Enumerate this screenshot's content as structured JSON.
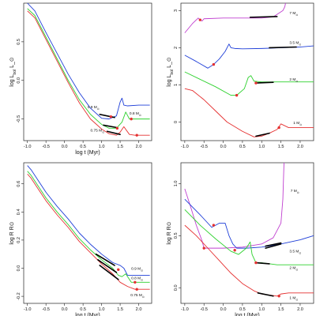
{
  "colors": {
    "blue": "#1f3fd8",
    "green": "#2ed12e",
    "red": "#e53030",
    "magenta": "#c040d0",
    "black": "#000000"
  },
  "chart_data": [
    {
      "type": "line",
      "xlabel": "log t  (Myr)",
      "ylabel": "log L_bol L_⊙",
      "xlim": [
        -1.1,
        2.35
      ],
      "ylim": [
        -0.78,
        1.0
      ],
      "xticks": [
        "-1.0",
        "-0.5",
        "0.0",
        "0.5",
        "1.0",
        "1.5",
        "2.0"
      ],
      "yticks": [
        {
          "v": 0.5,
          "label": "0.5"
        },
        {
          "v": 0.0,
          "label": "0.0"
        },
        {
          "v": -0.5,
          "label": "-0.5"
        }
      ],
      "series": [
        {
          "name": "0.9 M⊙",
          "color": "blue",
          "x": [
            -1.0,
            -0.8,
            -0.5,
            -0.2,
            0.1,
            0.4,
            0.7,
            1.0,
            1.2,
            1.4,
            1.5,
            1.55,
            1.6,
            1.7,
            2.0,
            2.3
          ],
          "y": [
            1.0,
            0.9,
            0.62,
            0.35,
            0.08,
            -0.16,
            -0.36,
            -0.49,
            -0.5,
            -0.46,
            -0.28,
            -0.23,
            -0.32,
            -0.33,
            -0.32,
            -0.32
          ]
        },
        {
          "name": "0.8 M⊙",
          "color": "green",
          "x": [
            -1.0,
            -0.8,
            -0.5,
            -0.2,
            0.1,
            0.4,
            0.7,
            1.0,
            1.2,
            1.4,
            1.55,
            1.65,
            1.75,
            1.9,
            2.3
          ],
          "y": [
            0.93,
            0.84,
            0.56,
            0.28,
            0.0,
            -0.25,
            -0.44,
            -0.57,
            -0.62,
            -0.62,
            -0.54,
            -0.41,
            -0.5,
            -0.5,
            -0.5
          ]
        },
        {
          "name": "0.75 M⊙",
          "color": "red",
          "x": [
            -1.0,
            -0.8,
            -0.5,
            -0.2,
            0.1,
            0.4,
            0.7,
            1.0,
            1.2,
            1.4,
            1.5,
            1.6,
            1.75,
            1.9,
            2.3
          ],
          "y": [
            0.9,
            0.81,
            0.53,
            0.25,
            -0.03,
            -0.29,
            -0.5,
            -0.63,
            -0.69,
            -0.71,
            -0.67,
            -0.6,
            -0.7,
            -0.71,
            -0.71
          ]
        }
      ],
      "segments": [
        {
          "x": [
            0.95,
            1.35
          ],
          "y": [
            -0.44,
            -0.48
          ]
        },
        {
          "x": [
            1.05,
            1.4
          ],
          "y": [
            -0.58,
            -0.61
          ]
        },
        {
          "x": [
            1.15,
            1.5
          ],
          "y": [
            -0.66,
            -0.7
          ]
        }
      ],
      "dots": [
        {
          "x": 1.25,
          "y": -0.47
        },
        {
          "x": 1.8,
          "y": -0.5
        },
        {
          "x": 1.95,
          "y": -0.71
        },
        {
          "x": 1.42,
          "y": -0.62
        }
      ],
      "labels": [
        {
          "text": "0.9 M⊙",
          "x": 0.62,
          "y": -0.36
        },
        {
          "text": "0.8 M⊙",
          "x": 1.75,
          "y": -0.44
        },
        {
          "text": "0.75 M⊙",
          "x": 0.7,
          "y": -0.66
        }
      ]
    },
    {
      "type": "line",
      "xlabel": "",
      "ylabel": "log L_bol L_⊙",
      "xlim": [
        -1.1,
        2.35
      ],
      "ylim": [
        -0.5,
        3.2
      ],
      "xticks": [
        "-1.0",
        "-0.5",
        "0.0",
        "0.5",
        "1.0",
        "1.5",
        "2.0"
      ],
      "yticks": [
        {
          "v": 3,
          "label": "3"
        },
        {
          "v": 2,
          "label": "2"
        },
        {
          "v": 1,
          "label": "1"
        },
        {
          "v": 0,
          "label": "0"
        }
      ],
      "series": [
        {
          "name": "7 M⊙",
          "color": "magenta",
          "x": [
            -1.0,
            -0.8,
            -0.65,
            -0.6,
            -0.55,
            -0.5,
            0.0,
            0.5,
            1.0,
            1.3,
            1.55,
            1.6,
            1.62
          ],
          "y": [
            2.4,
            2.65,
            2.8,
            2.75,
            2.72,
            2.78,
            2.8,
            2.8,
            2.8,
            2.83,
            3.0,
            3.1,
            3.2
          ]
        },
        {
          "name": "3.5 M⊙",
          "color": "blue",
          "x": [
            -1.0,
            -0.7,
            -0.4,
            -0.25,
            -0.1,
            0.05,
            0.15,
            0.2,
            0.3,
            0.5,
            1.0,
            1.5,
            2.0,
            2.35
          ],
          "y": [
            1.8,
            1.63,
            1.45,
            1.55,
            1.7,
            1.9,
            2.1,
            2.0,
            1.98,
            1.97,
            1.98,
            2.0,
            2.02,
            2.05
          ]
        },
        {
          "name": "2 M⊙",
          "color": "green",
          "x": [
            -1.0,
            -0.6,
            -0.2,
            0.2,
            0.35,
            0.55,
            0.65,
            0.72,
            0.8,
            1.0,
            1.3,
            1.6,
            2.0,
            2.35
          ],
          "y": [
            1.35,
            1.15,
            0.95,
            0.72,
            0.72,
            0.9,
            1.2,
            1.25,
            1.1,
            1.08,
            1.08,
            1.08,
            1.08,
            1.08
          ]
        },
        {
          "name": "1 M⊙",
          "color": "red",
          "x": [
            -1.0,
            -0.8,
            -0.5,
            -0.2,
            0.1,
            0.5,
            0.8,
            1.0,
            1.2,
            1.4,
            1.5,
            1.6,
            1.7,
            2.0,
            2.35
          ],
          "y": [
            0.9,
            0.85,
            0.6,
            0.3,
            0.0,
            -0.25,
            -0.4,
            -0.38,
            -0.3,
            -0.2,
            -0.05,
            -0.1,
            -0.15,
            -0.15,
            -0.15
          ]
        }
      ],
      "segments": [
        {
          "x": [
            0.7,
            1.4
          ],
          "y": [
            2.82,
            2.84
          ]
        },
        {
          "x": [
            1.2,
            1.9
          ],
          "y": [
            2.0,
            2.02
          ]
        },
        {
          "x": [
            0.85,
            1.3
          ],
          "y": [
            1.05,
            1.07
          ]
        },
        {
          "x": [
            0.85,
            1.2
          ],
          "y": [
            -0.38,
            -0.3
          ]
        }
      ],
      "dots": [
        {
          "x": -0.6,
          "y": 2.75
        },
        {
          "x": -0.25,
          "y": 1.55
        },
        {
          "x": 0.35,
          "y": 0.72
        },
        {
          "x": 0.85,
          "y": 1.05
        },
        {
          "x": 1.45,
          "y": -0.15
        }
      ],
      "labels": [
        {
          "text": "7 M⊙",
          "x": 1.72,
          "y": 2.9
        },
        {
          "text": "3.5 M⊙",
          "x": 1.72,
          "y": 2.1
        },
        {
          "text": "2 M⊙",
          "x": 1.72,
          "y": 1.12
        },
        {
          "text": "1 M⊙",
          "x": 1.82,
          "y": -0.05
        }
      ]
    },
    {
      "type": "line",
      "xlabel": "log t  (Myr)",
      "ylabel": "log R  R⊙",
      "xlim": [
        -1.1,
        2.35
      ],
      "ylim": [
        -0.25,
        0.75
      ],
      "xticks": [
        "-1.0",
        "-0.5",
        "0.0",
        "0.5",
        "1.0",
        "1.5",
        "2.0"
      ],
      "yticks": [
        {
          "v": 0.6,
          "label": "0.6"
        },
        {
          "v": 0.4,
          "label": "0.4"
        },
        {
          "v": 0.2,
          "label": "0.2"
        },
        {
          "v": 0.0,
          "label": "0.0"
        },
        {
          "v": -0.2,
          "label": "-0.2"
        }
      ],
      "series": [
        {
          "name": "0.9 M⊙",
          "color": "blue",
          "x": [
            -1.0,
            -0.9,
            -0.7,
            -0.5,
            -0.2,
            0.1,
            0.4,
            0.7,
            1.0,
            1.3,
            1.5,
            1.6,
            1.7,
            2.0,
            2.3
          ],
          "y": [
            0.73,
            0.7,
            0.62,
            0.54,
            0.44,
            0.35,
            0.25,
            0.17,
            0.1,
            0.04,
            0.02,
            0.0,
            -0.05,
            -0.05,
            -0.05
          ]
        },
        {
          "name": "0.8 M⊙",
          "color": "green",
          "x": [
            -1.0,
            -0.9,
            -0.7,
            -0.5,
            -0.2,
            0.1,
            0.4,
            0.7,
            1.0,
            1.3,
            1.45,
            1.55,
            1.65,
            1.8,
            2.3
          ],
          "y": [
            0.69,
            0.66,
            0.58,
            0.5,
            0.4,
            0.31,
            0.21,
            0.13,
            0.06,
            0.0,
            -0.05,
            -0.06,
            -0.04,
            -0.1,
            -0.1
          ]
        },
        {
          "name": "0.75 M⊙",
          "color": "red",
          "x": [
            -1.0,
            -0.9,
            -0.7,
            -0.5,
            -0.2,
            0.1,
            0.4,
            0.7,
            1.0,
            1.3,
            1.5,
            1.7,
            1.9,
            2.3
          ],
          "y": [
            0.67,
            0.64,
            0.56,
            0.48,
            0.38,
            0.29,
            0.19,
            0.11,
            0.03,
            -0.04,
            -0.1,
            -0.13,
            -0.15,
            -0.15
          ]
        }
      ],
      "segments": [
        {
          "x": [
            0.85,
            1.35
          ],
          "y": [
            0.1,
            0.02
          ]
        },
        {
          "x": [
            0.9,
            1.4
          ],
          "y": [
            0.06,
            -0.03
          ]
        },
        {
          "x": [
            0.95,
            1.45
          ],
          "y": [
            0.02,
            -0.08
          ]
        }
      ],
      "dots": [
        {
          "x": 1.45,
          "y": -0.01
        },
        {
          "x": 1.9,
          "y": -0.1
        },
        {
          "x": 1.95,
          "y": -0.15
        }
      ],
      "labels": [
        {
          "text": "0.9 M⊙",
          "x": 1.8,
          "y": -0.01
        },
        {
          "text": "0.8 M⊙",
          "x": 1.8,
          "y": -0.08
        },
        {
          "text": "0.75 M⊙",
          "x": 1.78,
          "y": -0.2
        }
      ]
    },
    {
      "type": "line",
      "xlabel": "log t  (Myr)",
      "ylabel": "log R  R⊙",
      "xlim": [
        -1.1,
        2.35
      ],
      "ylim": [
        -0.15,
        1.2
      ],
      "xticks": [
        "-1.0",
        "-0.5",
        "0.0",
        "0.5",
        "1.0",
        "1.5",
        "2.0"
      ],
      "yticks": [
        {
          "v": 1.0,
          "label": "1.0"
        },
        {
          "v": 0.5,
          "label": "0.5"
        },
        {
          "v": 0.0,
          "label": "0.0"
        }
      ],
      "series": [
        {
          "name": "7 M⊙",
          "color": "magenta",
          "x": [
            -1.0,
            -0.85,
            -0.7,
            -0.55,
            -0.5,
            -0.4,
            0.0,
            0.5,
            1.0,
            1.3,
            1.5,
            1.55,
            1.58
          ],
          "y": [
            0.95,
            0.78,
            0.6,
            0.45,
            0.38,
            0.38,
            0.38,
            0.39,
            0.42,
            0.48,
            0.62,
            0.85,
            1.2
          ]
        },
        {
          "name": "3.5 M⊙",
          "color": "blue",
          "x": [
            -1.0,
            -0.6,
            -0.3,
            -0.1,
            0.05,
            0.15,
            0.25,
            0.35,
            0.6,
            1.0,
            1.5,
            2.0,
            2.35
          ],
          "y": [
            0.85,
            0.7,
            0.58,
            0.62,
            0.62,
            0.5,
            0.42,
            0.38,
            0.38,
            0.39,
            0.42,
            0.46,
            0.5
          ]
        },
        {
          "name": "2 M⊙",
          "color": "green",
          "x": [
            -1.0,
            -0.6,
            -0.2,
            0.2,
            0.4,
            0.6,
            0.7,
            0.75,
            0.85,
            1.0,
            1.4,
            2.0,
            2.35
          ],
          "y": [
            0.75,
            0.6,
            0.47,
            0.35,
            0.32,
            0.38,
            0.44,
            0.32,
            0.24,
            0.24,
            0.22,
            0.22,
            0.22
          ]
        },
        {
          "name": "1 M⊙",
          "color": "red",
          "x": [
            -1.0,
            -0.7,
            -0.4,
            -0.1,
            0.2,
            0.5,
            0.8,
            1.0,
            1.2,
            1.4,
            1.5,
            1.7,
            2.0,
            2.35
          ],
          "y": [
            0.6,
            0.5,
            0.38,
            0.26,
            0.14,
            0.04,
            -0.03,
            -0.06,
            -0.07,
            -0.08,
            -0.06,
            -0.05,
            -0.05,
            -0.05
          ]
        }
      ],
      "segments": [
        {
          "x": [
            1.1,
            1.5
          ],
          "y": [
            0.4,
            0.43
          ]
        },
        {
          "x": [
            1.1,
            1.5
          ],
          "y": [
            0.38,
            0.42
          ]
        },
        {
          "x": [
            0.85,
            1.2
          ],
          "y": [
            0.24,
            0.23
          ]
        },
        {
          "x": [
            0.9,
            1.3
          ],
          "y": [
            -0.05,
            -0.08
          ]
        }
      ],
      "dots": [
        {
          "x": -0.5,
          "y": 0.38
        },
        {
          "x": -0.25,
          "y": 0.6
        },
        {
          "x": 0.3,
          "y": 0.36
        },
        {
          "x": 0.85,
          "y": 0.24
        },
        {
          "x": 1.45,
          "y": -0.08
        }
      ],
      "labels": [
        {
          "text": "7 M⊙",
          "x": 1.75,
          "y": 0.92
        },
        {
          "text": "3.5 M⊙",
          "x": 1.72,
          "y": 0.34
        },
        {
          "text": "2 M⊙",
          "x": 1.72,
          "y": 0.18
        },
        {
          "text": "1 M⊙",
          "x": 1.72,
          "y": -0.11
        }
      ]
    }
  ]
}
